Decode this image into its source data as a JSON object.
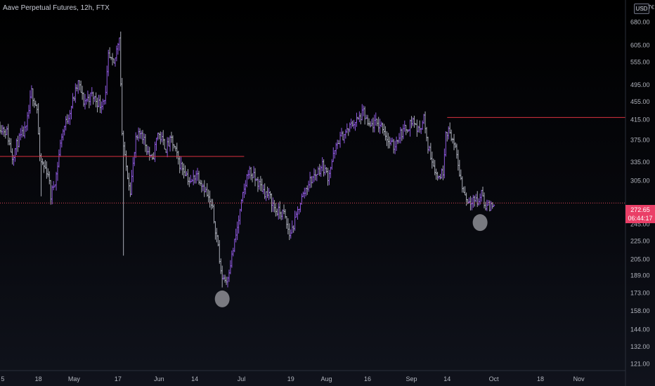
{
  "header": {
    "title": "Aave Perpetual Futures, 12h, FTX",
    "currency": "USD",
    "top_clip": "7€"
  },
  "price_tag": {
    "price": "272.65",
    "countdown": "06:44:17"
  },
  "colors": {
    "up_bar": "#8d58dc",
    "down_bar": "#a8abb6",
    "resistance_line": "#d8313f",
    "current_price_line": "#e0455a",
    "marker": "#9a9aa0",
    "axis_text": "#b2b5be"
  },
  "chart_data": {
    "type": "ohlc",
    "y_axis": {
      "scale": "log",
      "ticks": [
        680,
        605,
        555,
        495,
        455,
        415,
        375,
        335,
        305,
        265,
        245,
        225,
        205,
        189,
        173,
        158,
        144,
        132,
        121
      ],
      "tick_labels": [
        "680.00",
        "605.00",
        "555.00",
        "495.00",
        "455.00",
        "415.00",
        "375.00",
        "335.00",
        "305.00",
        "265.00",
        "245.00",
        "225.00",
        "205.00",
        "189.00",
        "173.00",
        "158.00",
        "144.00",
        "132.00",
        "121.00"
      ],
      "range": [
        117,
        760
      ]
    },
    "x_axis": {
      "range": [
        "2021-04-04",
        "2021-11-18"
      ],
      "ticks": [
        {
          "date": "2021-04-05",
          "label": "5"
        },
        {
          "date": "2021-04-18",
          "label": "18"
        },
        {
          "date": "2021-05-01",
          "label": "May"
        },
        {
          "date": "2021-05-17",
          "label": "17"
        },
        {
          "date": "2021-06-01",
          "label": "Jun"
        },
        {
          "date": "2021-06-14",
          "label": "14"
        },
        {
          "date": "2021-07-01",
          "label": "Jul"
        },
        {
          "date": "2021-07-19",
          "label": "19"
        },
        {
          "date": "2021-08-01",
          "label": "Aug"
        },
        {
          "date": "2021-08-16",
          "label": "16"
        },
        {
          "date": "2021-09-01",
          "label": "Sep"
        },
        {
          "date": "2021-09-14",
          "label": "14"
        },
        {
          "date": "2021-10-01",
          "label": "Oct"
        },
        {
          "date": "2021-10-18",
          "label": "18"
        },
        {
          "date": "2021-11-01",
          "label": "Nov"
        }
      ]
    },
    "price_series": [
      [
        "2021-04-04",
        405
      ],
      [
        "2021-04-07",
        390
      ],
      [
        "2021-04-09",
        345
      ],
      [
        "2021-04-11",
        372
      ],
      [
        "2021-04-14",
        395
      ],
      [
        "2021-04-16",
        478
      ],
      [
        "2021-04-18",
        440
      ],
      [
        "2021-04-19",
        338
      ],
      [
        "2021-04-22",
        318
      ],
      [
        "2021-04-23",
        282
      ],
      [
        "2021-04-25",
        315
      ],
      [
        "2021-04-27",
        385
      ],
      [
        "2021-04-30",
        435
      ],
      [
        "2021-05-03",
        500
      ],
      [
        "2021-05-05",
        455
      ],
      [
        "2021-05-08",
        470
      ],
      [
        "2021-05-11",
        448
      ],
      [
        "2021-05-13",
        470
      ],
      [
        "2021-05-14",
        570
      ],
      [
        "2021-05-16",
        545
      ],
      [
        "2021-05-18",
        640
      ],
      [
        "2021-05-19",
        390
      ],
      [
        "2021-05-20",
        340
      ],
      [
        "2021-05-22",
        292
      ],
      [
        "2021-05-24",
        372
      ],
      [
        "2021-05-26",
        392
      ],
      [
        "2021-05-28",
        360
      ],
      [
        "2021-05-30",
        335
      ],
      [
        "2021-06-01",
        390
      ],
      [
        "2021-06-04",
        360
      ],
      [
        "2021-06-06",
        375
      ],
      [
        "2021-06-09",
        332
      ],
      [
        "2021-06-11",
        320
      ],
      [
        "2021-06-13",
        300
      ],
      [
        "2021-06-15",
        318
      ],
      [
        "2021-06-18",
        295
      ],
      [
        "2021-06-21",
        262
      ],
      [
        "2021-06-23",
        220
      ],
      [
        "2021-06-24",
        190
      ],
      [
        "2021-06-26",
        184
      ],
      [
        "2021-06-28",
        208
      ],
      [
        "2021-06-30",
        240
      ],
      [
        "2021-07-02",
        282
      ],
      [
        "2021-07-03",
        300
      ],
      [
        "2021-07-04",
        322
      ],
      [
        "2021-07-07",
        305
      ],
      [
        "2021-07-10",
        288
      ],
      [
        "2021-07-12",
        280
      ],
      [
        "2021-07-14",
        262
      ],
      [
        "2021-07-17",
        258
      ],
      [
        "2021-07-19",
        232
      ],
      [
        "2021-07-21",
        248
      ],
      [
        "2021-07-23",
        275
      ],
      [
        "2021-07-26",
        302
      ],
      [
        "2021-07-29",
        318
      ],
      [
        "2021-07-31",
        330
      ],
      [
        "2021-08-02",
        312
      ],
      [
        "2021-08-04",
        345
      ],
      [
        "2021-08-06",
        375
      ],
      [
        "2021-08-09",
        392
      ],
      [
        "2021-08-11",
        408
      ],
      [
        "2021-08-13",
        415
      ],
      [
        "2021-08-15",
        430
      ],
      [
        "2021-08-17",
        398
      ],
      [
        "2021-08-19",
        408
      ],
      [
        "2021-08-22",
        402
      ],
      [
        "2021-08-24",
        372
      ],
      [
        "2021-08-26",
        362
      ],
      [
        "2021-08-28",
        385
      ],
      [
        "2021-08-31",
        400
      ],
      [
        "2021-09-02",
        415
      ],
      [
        "2021-09-04",
        392
      ],
      [
        "2021-09-06",
        420
      ],
      [
        "2021-09-07",
        372
      ],
      [
        "2021-09-09",
        340
      ],
      [
        "2021-09-11",
        310
      ],
      [
        "2021-09-13",
        320
      ],
      [
        "2021-09-14",
        395
      ],
      [
        "2021-09-16",
        385
      ],
      [
        "2021-09-18",
        345
      ],
      [
        "2021-09-20",
        295
      ],
      [
        "2021-09-22",
        275
      ],
      [
        "2021-09-24",
        280
      ],
      [
        "2021-09-26",
        272
      ],
      [
        "2021-09-27",
        292
      ],
      [
        "2021-09-28",
        272
      ],
      [
        "2021-09-30",
        266
      ],
      [
        "2021-10-01",
        273
      ]
    ],
    "horizontal_levels": [
      {
        "price": 345,
        "from": "2021-04-04",
        "to": "2021-07-02",
        "kind": "resistance"
      },
      {
        "price": 420,
        "from": "2021-09-14",
        "to": "2021-11-18",
        "kind": "resistance"
      },
      {
        "price": 272.65,
        "from": "2021-04-04",
        "to": "2021-11-18",
        "kind": "current-price"
      }
    ],
    "markers": [
      {
        "date": "2021-06-24",
        "price": 168
      },
      {
        "date": "2021-09-26",
        "price": 247
      }
    ]
  }
}
